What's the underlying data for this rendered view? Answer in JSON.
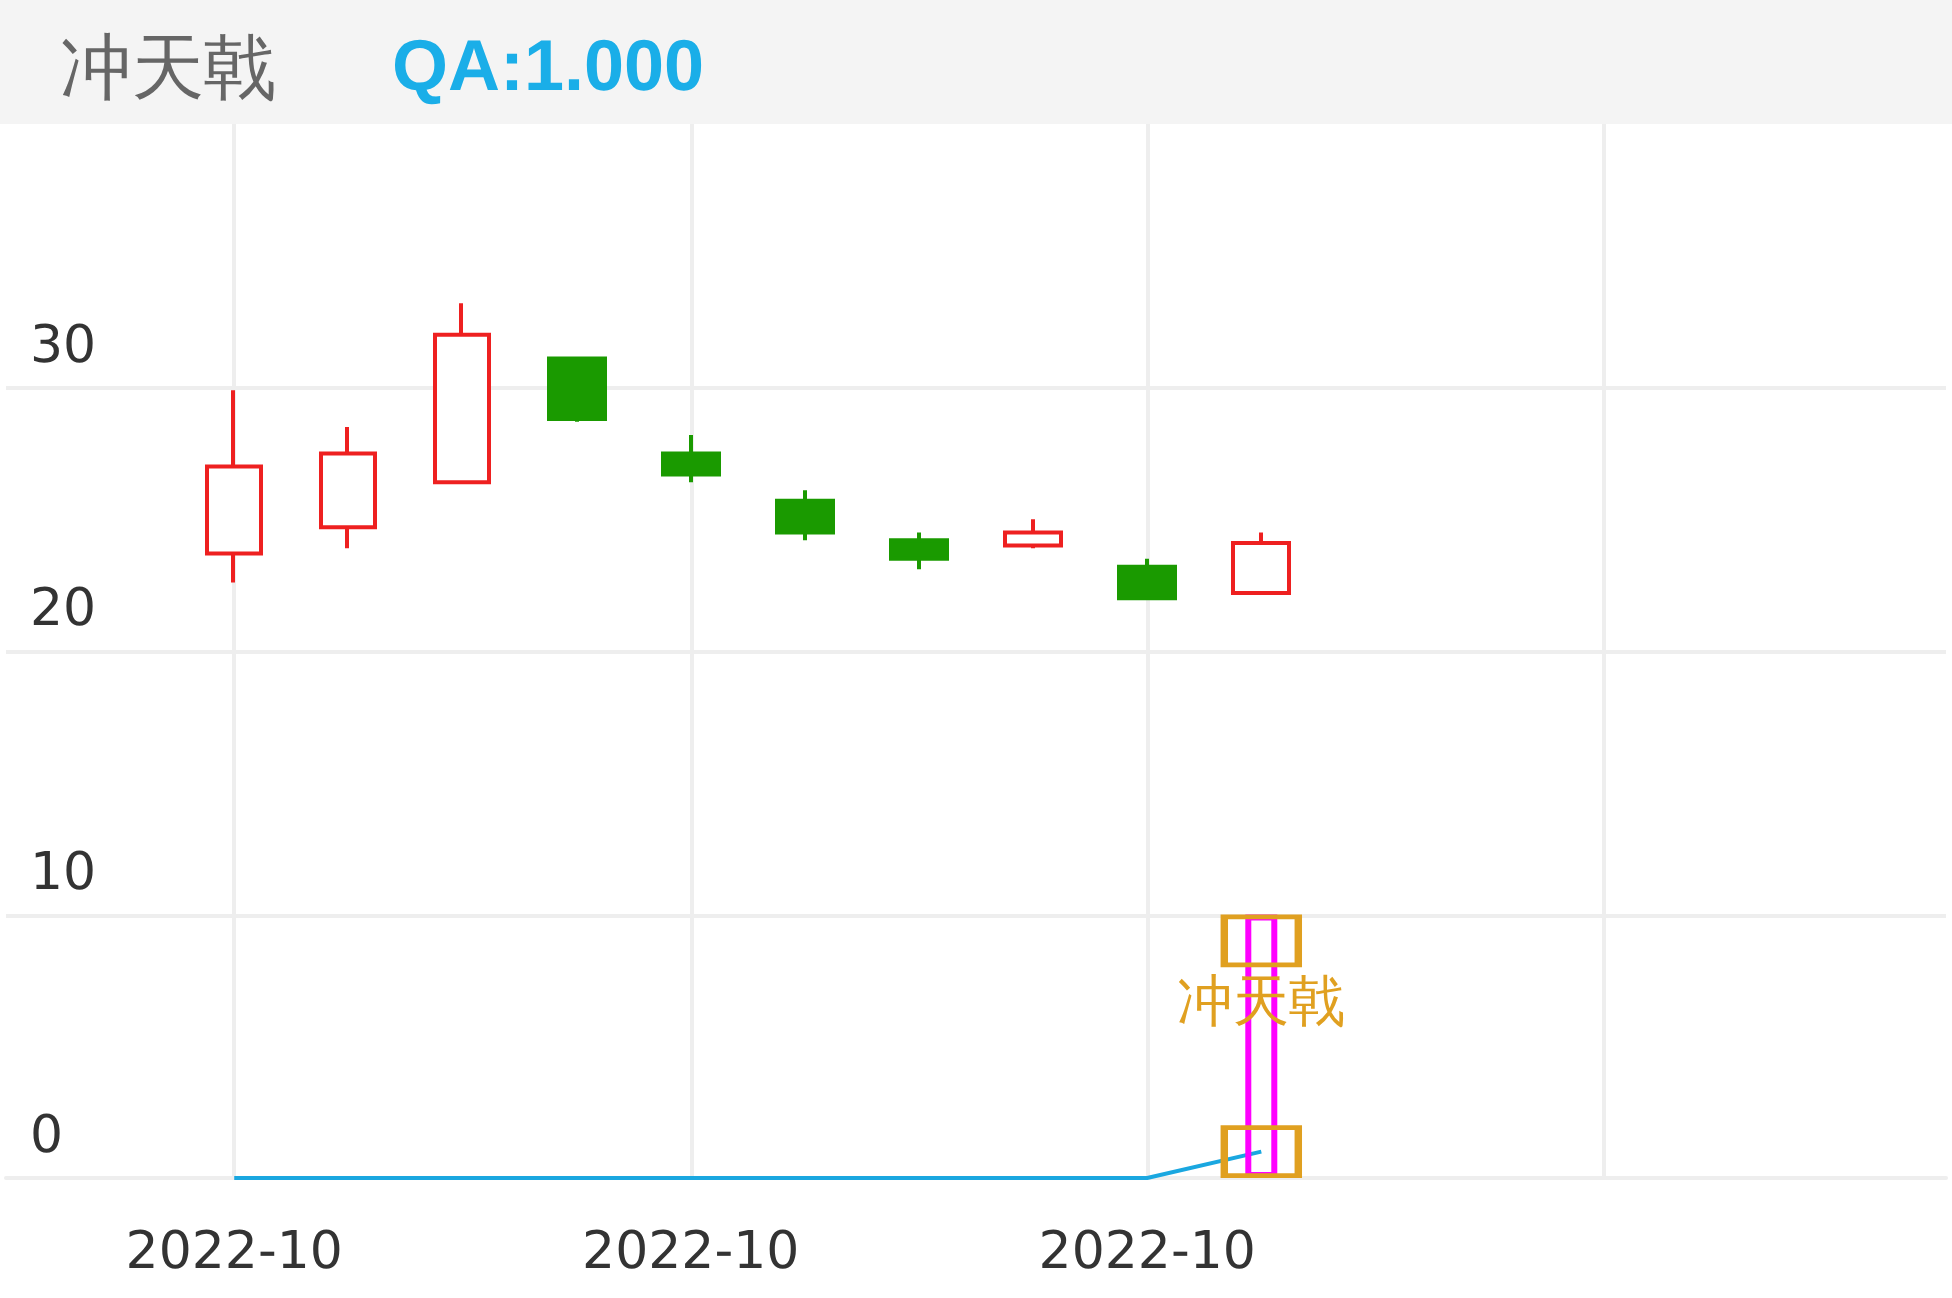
{
  "chart_data": {
    "type": "candlestick",
    "title": "冲天戟",
    "subtitle": "QA:1.000",
    "categories": [
      null,
      null,
      "2022-10",
      null,
      null,
      null,
      "2022-10",
      null,
      null,
      null,
      "2022-10",
      null,
      null,
      null,
      null,
      null,
      null,
      null
    ],
    "series": [
      {
        "ohlc": [
          null,
          null,
          [
            23.7,
            29.9,
            22.6,
            27.0
          ],
          [
            24.7,
            28.5,
            23.9,
            27.5
          ],
          [
            26.4,
            33.2,
            26.4,
            32.0
          ],
          [
            31.1,
            31.1,
            28.7,
            28.8
          ],
          [
            27.5,
            28.2,
            26.4,
            26.7
          ],
          [
            25.7,
            26.1,
            24.2,
            24.5
          ],
          [
            24.2,
            24.5,
            23.1,
            23.5
          ],
          [
            24.0,
            25.0,
            23.9,
            24.5
          ],
          [
            23.2,
            23.5,
            22.0,
            22.0
          ],
          [
            22.2,
            24.5,
            22.2,
            24.1
          ],
          null,
          null,
          null,
          null,
          null,
          null
        ],
        "colors": [
          null,
          null,
          "#ee2020",
          "#ee2020",
          "#ee2020",
          "#1a9a00",
          "#1a9a00",
          "#1a9a00",
          "#1a9a00",
          "#ee2020",
          "#1a9a00",
          "#ee2020",
          null,
          null,
          null,
          null,
          null,
          null
        ]
      },
      {
        "type": "line",
        "color": "#1aa7e0",
        "values": [
          null,
          null,
          0,
          0,
          0,
          0,
          0,
          0,
          0,
          0,
          0,
          1,
          null,
          null,
          null,
          null,
          null,
          null
        ]
      },
      {
        "type": "bar",
        "color": "#ff00ff",
        "values": [
          null,
          null,
          null,
          null,
          null,
          null,
          null,
          null,
          null,
          null,
          null,
          10,
          null,
          null,
          null,
          null,
          null,
          null
        ]
      },
      {
        "type": "scatter",
        "color": "#e0a020",
        "marker": "square",
        "values": [
          null,
          null,
          null,
          null,
          null,
          null,
          null,
          null,
          null,
          null,
          null,
          9,
          null,
          null,
          null,
          null,
          null,
          null
        ]
      },
      {
        "type": "scatter",
        "color": "#e0a020",
        "marker": "square",
        "values": [
          null,
          null,
          null,
          null,
          null,
          null,
          null,
          null,
          null,
          null,
          null,
          1,
          null,
          null,
          null,
          null,
          null,
          null
        ]
      }
    ],
    "annotations": [
      {
        "text": "冲天戟",
        "y": 6.7
      }
    ],
    "ylim": [
      0,
      40
    ],
    "yticks": [
      0,
      10,
      20,
      30
    ],
    "grid": true,
    "marker": "none"
  }
}
